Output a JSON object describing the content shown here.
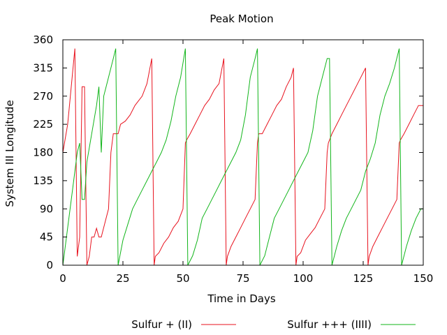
{
  "chart_data": {
    "type": "line",
    "title": "Peak Motion",
    "xlabel": "Time in Days",
    "ylabel": "System III Longitude",
    "xlim": [
      0,
      150
    ],
    "ylim": [
      0,
      360
    ],
    "xticks": [
      0,
      25,
      50,
      75,
      100,
      125,
      150
    ],
    "yticks": [
      0,
      45,
      90,
      135,
      180,
      225,
      270,
      315,
      360
    ],
    "grid": false,
    "legend_position": "bottom",
    "series": [
      {
        "name": "Sulfur + (II)",
        "color": "#e8121e",
        "x": [
          0,
          2,
          5,
          6,
          7,
          8,
          9,
          10,
          11,
          12,
          13,
          14,
          15,
          16,
          18,
          19,
          20,
          21,
          23,
          24,
          26,
          28,
          30,
          31,
          33,
          35,
          37,
          38,
          38.5,
          40,
          42,
          44,
          46,
          48,
          50,
          51,
          51.5,
          53,
          55,
          57,
          59,
          61,
          63,
          65,
          67,
          68,
          68.5,
          70,
          72,
          74,
          76,
          78,
          80,
          81,
          81.5,
          83,
          85,
          87,
          89,
          91,
          93,
          95,
          96,
          97,
          97.5,
          99,
          101,
          103,
          105,
          107,
          109,
          110,
          110.5,
          112,
          114,
          116,
          118,
          120,
          122,
          124,
          126,
          127,
          127.5,
          129,
          131,
          133,
          135,
          137,
          139,
          140,
          140.5,
          142,
          144,
          146,
          148,
          150
        ],
        "y": [
          180,
          225,
          346,
          14,
          45,
          285,
          285,
          0,
          14,
          45,
          45,
          59,
          45,
          45,
          75,
          90,
          180,
          210,
          210,
          225,
          230,
          240,
          255,
          260,
          270,
          290,
          330,
          0,
          14,
          20,
          35,
          45,
          60,
          70,
          90,
          195,
          200,
          210,
          225,
          240,
          255,
          265,
          280,
          290,
          330,
          0,
          14,
          30,
          45,
          60,
          75,
          90,
          105,
          195,
          210,
          210,
          225,
          240,
          255,
          265,
          285,
          300,
          315,
          0,
          14,
          20,
          40,
          50,
          60,
          75,
          90,
          180,
          195,
          210,
          225,
          240,
          255,
          270,
          285,
          300,
          315,
          0,
          14,
          30,
          45,
          60,
          75,
          90,
          105,
          195,
          200,
          210,
          225,
          240,
          255,
          255
        ]
      },
      {
        "name": "Sulfur +++ (IIII)",
        "color": "#11b51a",
        "x": [
          0,
          2,
          4,
          6,
          7,
          8,
          9,
          10,
          12,
          14,
          15,
          16,
          17,
          19,
          21,
          22,
          23,
          25,
          27,
          29,
          31,
          33,
          35,
          37,
          39,
          41,
          43,
          45,
          47,
          49,
          51,
          52,
          54,
          56,
          58,
          60,
          62,
          64,
          66,
          68,
          70,
          72,
          74,
          76,
          78,
          80,
          81,
          82,
          84,
          86,
          88,
          90,
          92,
          94,
          96,
          98,
          100,
          102,
          104,
          106,
          108,
          110,
          111,
          112,
          114,
          116,
          118,
          120,
          122,
          124,
          126,
          128,
          130,
          132,
          134,
          136,
          138,
          140,
          141,
          143,
          145,
          147,
          149,
          150
        ],
        "y": [
          0,
          60,
          120,
          180,
          195,
          105,
          105,
          165,
          210,
          255,
          285,
          180,
          270,
          300,
          330,
          346,
          0,
          40,
          65,
          90,
          105,
          120,
          135,
          150,
          165,
          180,
          200,
          230,
          270,
          300,
          346,
          0,
          15,
          40,
          75,
          90,
          105,
          120,
          135,
          150,
          165,
          180,
          200,
          240,
          300,
          330,
          346,
          0,
          15,
          45,
          75,
          90,
          105,
          120,
          135,
          150,
          165,
          180,
          215,
          270,
          300,
          330,
          330,
          0,
          30,
          55,
          75,
          90,
          105,
          120,
          150,
          170,
          195,
          240,
          270,
          290,
          315,
          346,
          0,
          30,
          55,
          75,
          90,
          90
        ]
      }
    ]
  }
}
